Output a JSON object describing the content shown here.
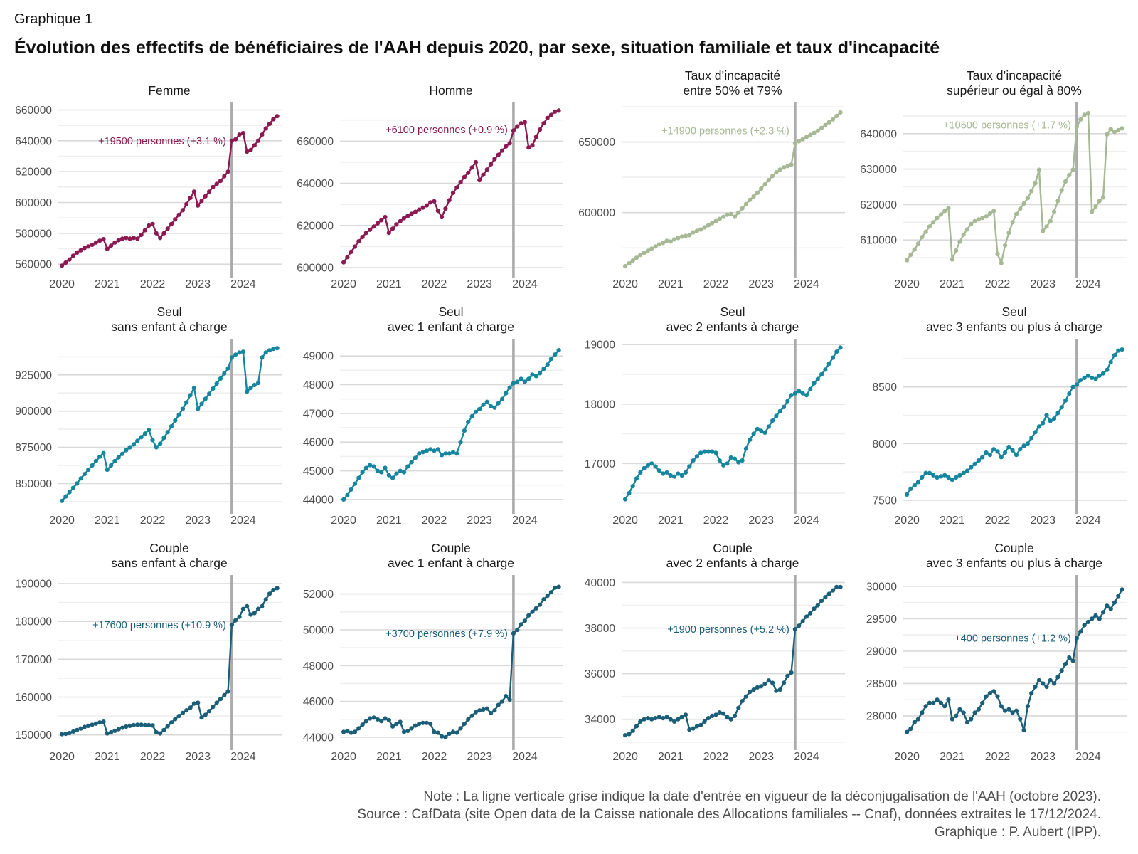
{
  "header": {
    "kicker": "Graphique 1",
    "title": "Évolution des effectifs de bénéficiaires de l'AAH depuis 2020, par sexe, situation familiale et taux d'incapacité"
  },
  "footer": {
    "lines": [
      "Note : La ligne verticale grise indique la date d'entrée en vigueur de la déconjugalisation de l'AAH (octobre 2023).",
      "Source : CafData (site Open data de la Caisse nationale des Allocations familiales -- Cnaf), données extraites le 17/12/2024.",
      "Graphique : P. Aubert (IPP)."
    ]
  },
  "colors": {
    "sexe": "#8C1A52",
    "taux": "#A6B894",
    "seul": "#16869E",
    "couple": "#1A5E78",
    "vline": "#ABABAB",
    "grid_major": "#D9D9D9",
    "grid_minor": "#EFEFEF",
    "tick_text": "#4d4d4d"
  },
  "chart_data": {
    "type": "line",
    "x_start_year": 2020,
    "x_step_months": 1,
    "x_ticks": [
      2020,
      2021,
      2022,
      2023,
      2024
    ],
    "xlim": [
      2019.92,
      2024.85
    ],
    "vline_x": 2023.75,
    "vline_meaning": "octobre 2023 — déconjugalisation de l'AAH",
    "panels": [
      {
        "slug": "femme",
        "title_lines": [
          "Femme"
        ],
        "color": "#8C1A52",
        "annotation": {
          "text": "+19500 personnes (+3.1 %)",
          "y": 640000
        },
        "ylim": [
          555000,
          663000
        ],
        "yticks": [
          560000,
          580000,
          600000,
          620000,
          640000,
          660000
        ],
        "yticks_minor": [
          570000,
          590000,
          610000,
          630000,
          650000
        ],
        "values": [
          559000,
          561000,
          563000,
          565500,
          567500,
          569000,
          570500,
          571500,
          572500,
          574000,
          575200,
          576200,
          570000,
          572000,
          574000,
          575500,
          576500,
          577000,
          576500,
          577000,
          576500,
          579000,
          582000,
          585000,
          586000,
          580000,
          577000,
          580000,
          583000,
          586000,
          589000,
          592000,
          595000,
          599000,
          603000,
          607000,
          598000,
          601000,
          604000,
          607000,
          610000,
          612000,
          614000,
          617000,
          620000,
          640000,
          641000,
          644000,
          645000,
          633000,
          634000,
          637000,
          640000,
          644000,
          648000,
          651000,
          654000,
          656000
        ]
      },
      {
        "slug": "homme",
        "title_lines": [
          "Homme"
        ],
        "color": "#8C1A52",
        "annotation": {
          "text": "+6100 personnes (+0.9 %)",
          "y": 665500
        },
        "ylim": [
          598000,
          677000
        ],
        "yticks": [
          600000,
          620000,
          640000,
          660000
        ],
        "yticks_minor": [
          610000,
          630000,
          650000,
          670000
        ],
        "values": [
          602500,
          605000,
          607500,
          610000,
          612500,
          614500,
          616500,
          618000,
          619500,
          621000,
          622500,
          624000,
          616500,
          618500,
          620500,
          622000,
          623500,
          624500,
          625500,
          626500,
          627500,
          628500,
          629500,
          631000,
          631500,
          627000,
          624000,
          628000,
          632000,
          635500,
          638000,
          640500,
          643000,
          645000,
          647500,
          650000,
          641500,
          644000,
          646500,
          649000,
          651500,
          653500,
          655500,
          657500,
          659000,
          665000,
          667000,
          668500,
          669000,
          657000,
          658000,
          662000,
          665500,
          668500,
          671000,
          672500,
          674000,
          674500
        ]
      },
      {
        "slug": "taux-50-79",
        "title_lines": [
          "Taux d’incapacité",
          "entre 50% et 79%"
        ],
        "color": "#A6B894",
        "annotation": {
          "text": "+14900 personnes (+2.3 %)",
          "y": 658000
        },
        "ylim": [
          558000,
          676000
        ],
        "yticks": [
          600000,
          650000
        ],
        "yticks_minor": [
          575000,
          625000,
          675000
        ],
        "values": [
          562000,
          564000,
          566000,
          568000,
          570000,
          571500,
          573000,
          574500,
          576000,
          577500,
          578500,
          580000,
          579500,
          581000,
          582000,
          583000,
          583500,
          584000,
          586000,
          587000,
          588000,
          589500,
          591000,
          592500,
          594000,
          595500,
          597000,
          598500,
          599000,
          597000,
          600000,
          603000,
          606000,
          609000,
          611500,
          614000,
          617000,
          620000,
          623000,
          626000,
          628500,
          630500,
          632000,
          633000,
          634000,
          649000,
          650500,
          652000,
          653500,
          655000,
          656500,
          658000,
          660000,
          662000,
          664000,
          666000,
          668500,
          671000
        ]
      },
      {
        "slug": "taux-80-plus",
        "title_lines": [
          "Taux d’incapacité",
          "supérieur ou égal à 80%"
        ],
        "color": "#A6B894",
        "annotation": {
          "text": "+10600 personnes (+1.7 %)",
          "y": 642500
        },
        "ylim": [
          601000,
          648000
        ],
        "yticks": [
          610000,
          620000,
          630000,
          640000
        ],
        "yticks_minor": [
          605000,
          615000,
          625000,
          635000,
          645000
        ],
        "values": [
          604300,
          605800,
          607300,
          609000,
          610800,
          612300,
          613800,
          615000,
          616200,
          617200,
          618200,
          619000,
          604500,
          607000,
          609500,
          611500,
          613000,
          614500,
          615300,
          615800,
          616200,
          616600,
          617500,
          618200,
          606000,
          603500,
          608500,
          612000,
          615000,
          617300,
          618800,
          620300,
          621800,
          623800,
          626000,
          629800,
          612500,
          613800,
          615300,
          618000,
          621000,
          624000,
          626500,
          628300,
          629800,
          642000,
          644000,
          645300,
          645800,
          618000,
          619500,
          621000,
          622000,
          639800,
          641300,
          640500,
          641000,
          641500
        ]
      },
      {
        "slug": "seul-sans-enfant",
        "title_lines": [
          "Seul",
          "sans enfant à charge"
        ],
        "color": "#16869E",
        "annotation": null,
        "ylim": [
          833000,
          948000
        ],
        "yticks": [
          850000,
          875000,
          900000,
          925000
        ],
        "yticks_minor": [
          837500,
          862500,
          887500,
          912500,
          937500
        ],
        "values": [
          838000,
          841000,
          844000,
          847000,
          850000,
          853500,
          856500,
          859500,
          862500,
          865500,
          868500,
          871000,
          859500,
          862500,
          865500,
          868000,
          870500,
          873000,
          875000,
          877000,
          879500,
          882000,
          884500,
          887000,
          880000,
          875000,
          877500,
          881500,
          885500,
          889500,
          893500,
          897500,
          901500,
          906000,
          911000,
          916000,
          901500,
          905000,
          908500,
          912000,
          915500,
          919000,
          922500,
          926000,
          929500,
          937000,
          939000,
          940500,
          941000,
          913500,
          916000,
          918000,
          919500,
          937000,
          940500,
          942000,
          943000,
          943500
        ]
      },
      {
        "slug": "seul-1-enfant",
        "title_lines": [
          "Seul",
          "avec 1 enfant à charge"
        ],
        "color": "#16869E",
        "annotation": null,
        "ylim": [
          43700,
          49500
        ],
        "yticks": [
          44000,
          45000,
          46000,
          47000,
          48000,
          49000
        ],
        "yticks_minor": [
          44500,
          45500,
          46500,
          47500,
          48500
        ],
        "values": [
          44000,
          44150,
          44350,
          44550,
          44750,
          44950,
          45100,
          45200,
          45150,
          45000,
          44950,
          45100,
          44850,
          44750,
          44900,
          45000,
          44950,
          45150,
          45300,
          45450,
          45600,
          45650,
          45700,
          45750,
          45700,
          45750,
          45550,
          45600,
          45600,
          45650,
          45600,
          46000,
          46400,
          46700,
          46900,
          47050,
          47150,
          47300,
          47400,
          47250,
          47200,
          47350,
          47500,
          47700,
          47900,
          48050,
          48100,
          48200,
          48100,
          48200,
          48350,
          48300,
          48400,
          48550,
          48700,
          48900,
          49050,
          49200
        ]
      },
      {
        "slug": "seul-2-enfants",
        "title_lines": [
          "Seul",
          "avec 2 enfants à charge"
        ],
        "color": "#16869E",
        "annotation": null,
        "ylim": [
          16250,
          19050
        ],
        "yticks": [
          17000,
          18000,
          19000
        ],
        "yticks_minor": [
          16500,
          17500,
          18500
        ],
        "values": [
          16400,
          16500,
          16620,
          16750,
          16850,
          16920,
          16970,
          17000,
          16950,
          16880,
          16830,
          16850,
          16800,
          16780,
          16830,
          16800,
          16850,
          16950,
          17050,
          17120,
          17180,
          17200,
          17200,
          17200,
          17180,
          17050,
          16970,
          17000,
          17100,
          17080,
          17020,
          17050,
          17250,
          17400,
          17500,
          17580,
          17550,
          17520,
          17620,
          17720,
          17800,
          17880,
          17950,
          18050,
          18150,
          18180,
          18220,
          18180,
          18150,
          18250,
          18350,
          18420,
          18500,
          18580,
          18680,
          18780,
          18880,
          18950
        ]
      },
      {
        "slug": "seul-3-enfants-ou-plus",
        "title_lines": [
          "Seul",
          "avec 3 enfants ou plus à charge"
        ],
        "color": "#16869E",
        "annotation": null,
        "ylim": [
          7430,
          8900
        ],
        "yticks": [
          7500,
          8000,
          8500
        ],
        "yticks_minor": [
          7750,
          8250,
          8750
        ],
        "values": [
          7550,
          7600,
          7630,
          7660,
          7700,
          7740,
          7740,
          7720,
          7700,
          7710,
          7720,
          7700,
          7680,
          7700,
          7720,
          7740,
          7760,
          7790,
          7820,
          7850,
          7880,
          7920,
          7900,
          7950,
          7930,
          7880,
          7920,
          7970,
          7940,
          7900,
          7950,
          7980,
          8000,
          8050,
          8100,
          8150,
          8180,
          8250,
          8200,
          8220,
          8270,
          8320,
          8380,
          8440,
          8500,
          8520,
          8560,
          8580,
          8600,
          8580,
          8570,
          8600,
          8620,
          8650,
          8720,
          8780,
          8820,
          8830
        ]
      },
      {
        "slug": "couple-sans-enfant",
        "title_lines": [
          "Couple",
          "sans enfant à charge"
        ],
        "color": "#1A5E78",
        "annotation": {
          "text": "+17600 personnes (+10.9 %)",
          "y": 179100
        },
        "ylim": [
          147500,
          191500
        ],
        "yticks": [
          150000,
          160000,
          170000,
          180000,
          190000
        ],
        "yticks_minor": [
          155000,
          165000,
          175000,
          185000
        ],
        "values": [
          150200,
          150300,
          150500,
          150900,
          151300,
          151700,
          152100,
          152400,
          152700,
          153000,
          153300,
          153500,
          150400,
          150700,
          151100,
          151500,
          151900,
          152200,
          152400,
          152600,
          152700,
          152700,
          152600,
          152600,
          152500,
          150700,
          150400,
          151300,
          152300,
          153300,
          154200,
          155000,
          155800,
          156500,
          157200,
          158300,
          158500,
          154600,
          155300,
          156300,
          157400,
          158500,
          159500,
          160500,
          161500,
          179100,
          180300,
          181200,
          183300,
          184000,
          181800,
          182200,
          183300,
          184000,
          185800,
          187300,
          188300,
          188800
        ]
      },
      {
        "slug": "couple-1-enfant",
        "title_lines": [
          "Couple",
          "avec 1 enfant à charge"
        ],
        "color": "#1A5E78",
        "annotation": {
          "text": "+3700 personnes (+7.9 %)",
          "y": 49800
        },
        "ylim": [
          43600,
          52900
        ],
        "yticks": [
          44000,
          46000,
          48000,
          50000,
          52000
        ],
        "yticks_minor": [
          45000,
          47000,
          49000,
          51000
        ],
        "values": [
          44300,
          44350,
          44250,
          44300,
          44500,
          44700,
          44900,
          45050,
          45100,
          45000,
          44900,
          45050,
          44950,
          44600,
          44750,
          44850,
          44300,
          44350,
          44500,
          44650,
          44750,
          44800,
          44800,
          44750,
          44300,
          44250,
          44050,
          44000,
          44200,
          44300,
          44250,
          44500,
          44750,
          45000,
          45200,
          45400,
          45500,
          45550,
          45600,
          45350,
          45500,
          45800,
          46000,
          46300,
          46100,
          49800,
          50000,
          50300,
          50500,
          50800,
          51000,
          51200,
          51400,
          51700,
          51900,
          52100,
          52350,
          52400
        ]
      },
      {
        "slug": "couple-2-enfants",
        "title_lines": [
          "Couple",
          "avec 2 enfants à charge"
        ],
        "color": "#1A5E78",
        "annotation": {
          "text": "+1900 personnes (+5.2 %)",
          "y": 37950
        },
        "ylim": [
          32900,
          40200
        ],
        "yticks": [
          34000,
          36000,
          38000,
          40000
        ],
        "yticks_minor": [
          33000,
          35000,
          37000,
          39000
        ],
        "values": [
          33300,
          33350,
          33500,
          33700,
          33900,
          34000,
          34050,
          34000,
          34050,
          34100,
          34050,
          34100,
          34000,
          33900,
          34000,
          34100,
          34200,
          33550,
          33600,
          33700,
          33750,
          33900,
          34050,
          34150,
          34200,
          34300,
          34250,
          34100,
          34000,
          34150,
          34500,
          34800,
          35000,
          35200,
          35300,
          35400,
          35450,
          35550,
          35700,
          35600,
          35250,
          35300,
          35600,
          35900,
          36050,
          37950,
          38100,
          38300,
          38500,
          38650,
          38850,
          39000,
          39200,
          39350,
          39500,
          39650,
          39800,
          39800
        ]
      },
      {
        "slug": "couple-3-enfants-ou-plus",
        "title_lines": [
          "Couple",
          "avec 3 enfants ou plus à charge"
        ],
        "color": "#1A5E78",
        "annotation": {
          "text": "+400 personnes (+1.2 %)",
          "y": 29200
        },
        "ylim": [
          27560,
          30130
        ],
        "yticks": [
          28000,
          28500,
          29000,
          29500,
          30000
        ],
        "yticks_minor": [
          27750,
          28250,
          28750,
          29250,
          29750
        ],
        "values": [
          27750,
          27800,
          27900,
          27950,
          28050,
          28150,
          28200,
          28200,
          28250,
          28200,
          28150,
          28250,
          27950,
          28000,
          28100,
          28050,
          27900,
          27950,
          28050,
          28100,
          28200,
          28300,
          28350,
          28380,
          28300,
          28150,
          28080,
          28100,
          28050,
          28080,
          27950,
          27780,
          28150,
          28350,
          28450,
          28550,
          28500,
          28450,
          28550,
          28500,
          28600,
          28700,
          28800,
          28900,
          28850,
          29200,
          29300,
          29400,
          29450,
          29500,
          29550,
          29500,
          29600,
          29700,
          29650,
          29750,
          29850,
          29950
        ]
      }
    ]
  }
}
